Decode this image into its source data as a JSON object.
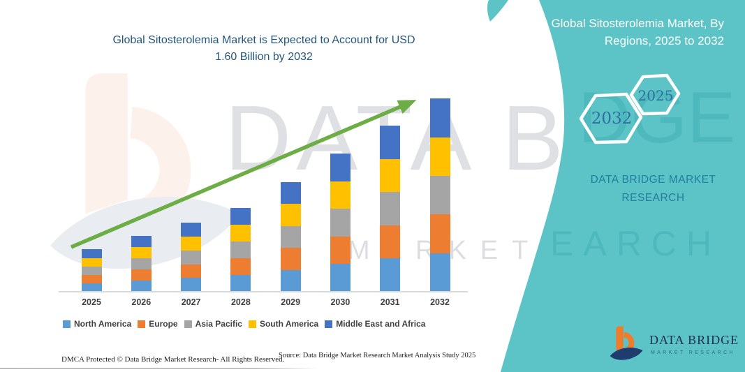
{
  "title": {
    "line1": "Global Sitosterolemia Market is Expected to Account for USD",
    "line2": "1.60 Billion by 2032"
  },
  "panel": {
    "bg_color": "#5CC3C6",
    "heading_line1": "Global Sitosterolemia Market, By",
    "heading_line2": "Regions, 2025 to 2032",
    "hexagons": [
      {
        "label": "2032"
      },
      {
        "label": "2025"
      }
    ],
    "brand_line1": "DATA BRIDGE MARKET",
    "brand_line2": "RESEARCH"
  },
  "chart_data": {
    "type": "bar",
    "stacked": true,
    "unit": "USD Billion",
    "title": "Global Sitosterolemia Market is Expected to Account for USD 1.60 Billion by 2032",
    "categories": [
      "2025",
      "2026",
      "2027",
      "2028",
      "2029",
      "2030",
      "2031",
      "2032"
    ],
    "series": [
      {
        "name": "North America",
        "color": "#5B9BD5",
        "values": [
          0.07,
          0.092,
          0.114,
          0.139,
          0.182,
          0.229,
          0.275,
          0.32
        ]
      },
      {
        "name": "Europe",
        "color": "#ED7D31",
        "values": [
          0.07,
          0.092,
          0.114,
          0.139,
          0.182,
          0.229,
          0.275,
          0.32
        ]
      },
      {
        "name": "Asia Pacific",
        "color": "#A5A5A5",
        "values": [
          0.07,
          0.092,
          0.114,
          0.139,
          0.182,
          0.229,
          0.275,
          0.32
        ]
      },
      {
        "name": "South America",
        "color": "#FFC000",
        "values": [
          0.07,
          0.092,
          0.114,
          0.139,
          0.182,
          0.229,
          0.275,
          0.32
        ]
      },
      {
        "name": "Middle East and Africa",
        "color": "#4472C4",
        "values": [
          0.07,
          0.092,
          0.114,
          0.139,
          0.182,
          0.229,
          0.275,
          0.32
        ]
      }
    ],
    "totals": [
      0.35,
      0.46,
      0.57,
      0.7,
      0.91,
      1.15,
      1.38,
      1.6
    ],
    "ylim": [
      0,
      1.66
    ],
    "grid": false,
    "legend_position": "bottom",
    "x_axis_label_color": "#404040",
    "annotation": {
      "trend_arrow_color": "#6CAE45"
    }
  },
  "watermark": {
    "text_line1": "DATA BRIDGE",
    "text_line2": "MARKET RESEARCH",
    "panel_fragment1": "DGE",
    "panel_fragment2": "EARCH"
  },
  "footer": {
    "dmca": "DMCA Protected © Data Bridge Market Research-  All Rights Reserved.",
    "source": "Source: Data Bridge Market Research  Market Analysis Study 2025"
  },
  "logo": {
    "name": "DATA BRIDGE",
    "subtitle": "MARKET RESEARCH"
  }
}
